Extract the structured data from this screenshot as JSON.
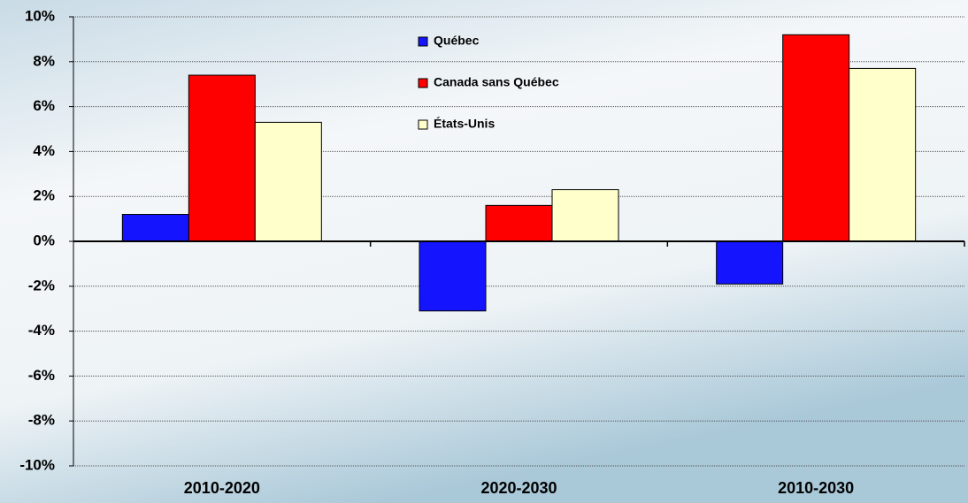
{
  "chart_data": {
    "type": "bar",
    "categories": [
      "2010-2020",
      "2020-2030",
      "2010-2030"
    ],
    "series": [
      {
        "name": "Québec",
        "color": "#1414ff",
        "values": [
          1.2,
          -3.1,
          -1.9
        ]
      },
      {
        "name": "Canada sans Québec",
        "color": "#ff0000",
        "values": [
          7.4,
          1.6,
          9.2
        ]
      },
      {
        "name": "États-Unis",
        "color": "#ffffcc",
        "values": [
          5.3,
          2.3,
          7.7
        ]
      }
    ],
    "ylim": [
      -10,
      10
    ],
    "yticks": [
      {
        "value": -10,
        "label": "-10%"
      },
      {
        "value": -8,
        "label": "-8%"
      },
      {
        "value": -6,
        "label": "-6%"
      },
      {
        "value": -4,
        "label": "-4%"
      },
      {
        "value": -2,
        "label": "-2%"
      },
      {
        "value": 0,
        "label": "0%"
      },
      {
        "value": 2,
        "label": "2%"
      },
      {
        "value": 4,
        "label": "4%"
      },
      {
        "value": 6,
        "label": "6%"
      },
      {
        "value": 8,
        "label": "8%"
      },
      {
        "value": 10,
        "label": "10%"
      }
    ],
    "grid": true
  }
}
